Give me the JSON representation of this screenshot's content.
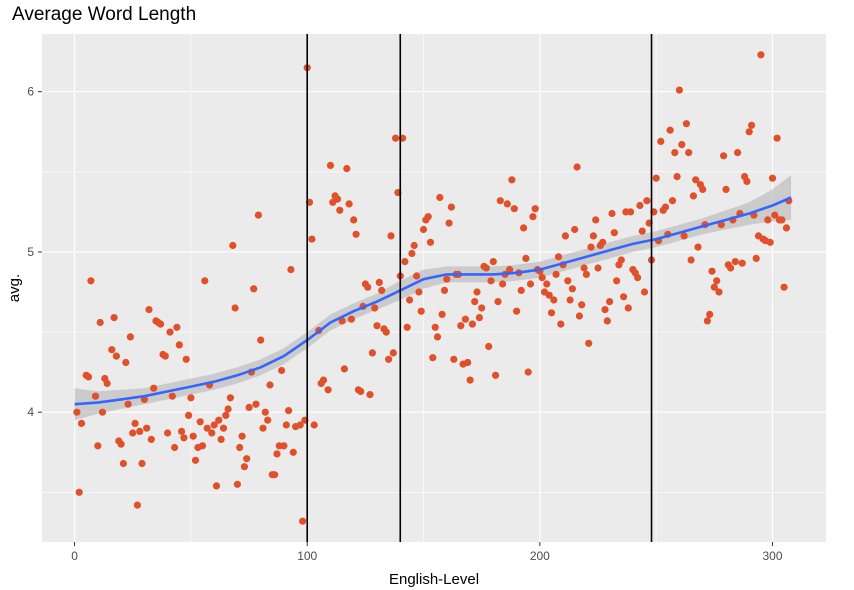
{
  "chart_data": {
    "type": "scatter",
    "title": "Average Word Length",
    "xlabel": "English-Level",
    "ylabel": "avg.",
    "xlim": [
      -14,
      323
    ],
    "ylim": [
      3.19,
      6.36
    ],
    "x_ticks": [
      0,
      100,
      200,
      300
    ],
    "x_tick_labels": [
      "0",
      "100",
      "200",
      "300"
    ],
    "y_ticks": [
      4,
      5,
      6
    ],
    "y_tick_labels": [
      "4",
      "5",
      "6"
    ],
    "grid": true,
    "legend": "none",
    "vlines": [
      100,
      140,
      248
    ],
    "point_color": "#e0502a",
    "smooth_color": "#3366ff",
    "ribbon_color": "#bebebe",
    "panel_color": "#ebebeb",
    "smooth": {
      "x": [
        0,
        10,
        20,
        30,
        40,
        50,
        60,
        70,
        80,
        90,
        100,
        110,
        120,
        130,
        140,
        150,
        160,
        170,
        180,
        190,
        200,
        210,
        220,
        230,
        240,
        250,
        260,
        270,
        280,
        290,
        300,
        308
      ],
      "y": [
        4.05,
        4.06,
        4.08,
        4.1,
        4.13,
        4.16,
        4.19,
        4.23,
        4.28,
        4.35,
        4.45,
        4.56,
        4.63,
        4.69,
        4.76,
        4.83,
        4.86,
        4.86,
        4.86,
        4.87,
        4.89,
        4.93,
        4.97,
        5.01,
        5.05,
        5.08,
        5.12,
        5.16,
        5.2,
        5.24,
        5.29,
        5.34
      ],
      "se": [
        0.1,
        0.07,
        0.06,
        0.05,
        0.05,
        0.05,
        0.05,
        0.05,
        0.05,
        0.05,
        0.05,
        0.05,
        0.05,
        0.05,
        0.06,
        0.06,
        0.05,
        0.05,
        0.05,
        0.05,
        0.05,
        0.05,
        0.05,
        0.05,
        0.05,
        0.05,
        0.05,
        0.05,
        0.06,
        0.07,
        0.1,
        0.14
      ]
    },
    "points": [
      [
        1,
        4.0
      ],
      [
        2,
        3.5
      ],
      [
        3,
        3.93
      ],
      [
        5,
        4.23
      ],
      [
        6,
        4.22
      ],
      [
        7,
        4.82
      ],
      [
        9,
        4.1
      ],
      [
        10,
        3.79
      ],
      [
        11,
        4.56
      ],
      [
        12,
        4.0
      ],
      [
        13,
        4.21
      ],
      [
        14,
        4.18
      ],
      [
        16,
        4.39
      ],
      [
        17,
        4.59
      ],
      [
        18,
        4.35
      ],
      [
        19,
        3.82
      ],
      [
        20,
        3.8
      ],
      [
        21,
        3.68
      ],
      [
        22,
        4.31
      ],
      [
        23,
        4.05
      ],
      [
        24,
        4.47
      ],
      [
        25,
        3.87
      ],
      [
        26,
        3.93
      ],
      [
        27,
        3.42
      ],
      [
        28,
        3.88
      ],
      [
        29,
        3.68
      ],
      [
        30,
        4.08
      ],
      [
        31,
        3.9
      ],
      [
        32,
        4.64
      ],
      [
        33,
        3.83
      ],
      [
        34,
        4.15
      ],
      [
        35,
        4.57
      ],
      [
        36,
        4.56
      ],
      [
        37,
        4.55
      ],
      [
        38,
        4.36
      ],
      [
        39,
        4.35
      ],
      [
        40,
        3.87
      ],
      [
        41,
        4.5
      ],
      [
        42,
        4.1
      ],
      [
        43,
        3.78
      ],
      [
        44,
        4.53
      ],
      [
        45,
        4.42
      ],
      [
        46,
        3.88
      ],
      [
        47,
        3.84
      ],
      [
        48,
        4.33
      ],
      [
        49,
        3.98
      ],
      [
        50,
        4.09
      ],
      [
        51,
        3.85
      ],
      [
        52,
        3.7
      ],
      [
        53,
        3.78
      ],
      [
        54,
        3.94
      ],
      [
        55,
        3.79
      ],
      [
        56,
        4.82
      ],
      [
        57,
        3.9
      ],
      [
        58,
        4.17
      ],
      [
        59,
        3.87
      ],
      [
        60,
        3.92
      ],
      [
        61,
        3.54
      ],
      [
        62,
        3.95
      ],
      [
        63,
        3.83
      ],
      [
        64,
        3.9
      ],
      [
        65,
        3.98
      ],
      [
        66,
        4.02
      ],
      [
        67,
        4.09
      ],
      [
        68,
        5.04
      ],
      [
        69,
        4.65
      ],
      [
        70,
        3.55
      ],
      [
        71,
        3.78
      ],
      [
        72,
        3.85
      ],
      [
        73,
        3.66
      ],
      [
        74,
        3.71
      ],
      [
        75,
        4.03
      ],
      [
        76,
        4.25
      ],
      [
        77,
        4.77
      ],
      [
        78,
        4.05
      ],
      [
        79,
        5.23
      ],
      [
        80,
        4.45
      ],
      [
        81,
        3.9
      ],
      [
        82,
        4.0
      ],
      [
        83,
        3.95
      ],
      [
        84,
        4.17
      ],
      [
        85,
        3.61
      ],
      [
        86,
        3.61
      ],
      [
        87,
        3.74
      ],
      [
        88,
        3.79
      ],
      [
        89,
        4.26
      ],
      [
        90,
        3.79
      ],
      [
        91,
        3.92
      ],
      [
        92,
        4.01
      ],
      [
        93,
        4.89
      ],
      [
        94,
        3.75
      ],
      [
        95,
        3.91
      ],
      [
        97,
        3.92
      ],
      [
        98,
        3.32
      ],
      [
        99,
        3.95
      ],
      [
        100,
        6.15
      ],
      [
        101,
        5.31
      ],
      [
        102,
        5.08
      ],
      [
        103,
        3.92
      ],
      [
        105,
        4.51
      ],
      [
        106,
        4.18
      ],
      [
        107,
        4.2
      ],
      [
        109,
        4.14
      ],
      [
        110,
        5.54
      ],
      [
        111,
        5.31
      ],
      [
        112,
        5.35
      ],
      [
        113,
        5.33
      ],
      [
        114,
        5.26
      ],
      [
        115,
        4.57
      ],
      [
        116,
        4.27
      ],
      [
        117,
        5.52
      ],
      [
        118,
        5.3
      ],
      [
        119,
        4.58
      ],
      [
        120,
        5.2
      ],
      [
        121,
        5.11
      ],
      [
        122,
        4.14
      ],
      [
        123,
        4.13
      ],
      [
        124,
        4.66
      ],
      [
        125,
        4.8
      ],
      [
        126,
        4.78
      ],
      [
        127,
        4.11
      ],
      [
        128,
        4.37
      ],
      [
        129,
        4.65
      ],
      [
        130,
        4.54
      ],
      [
        131,
        4.81
      ],
      [
        132,
        4.76
      ],
      [
        133,
        4.52
      ],
      [
        134,
        4.5
      ],
      [
        135,
        4.33
      ],
      [
        136,
        5.1
      ],
      [
        137,
        4.37
      ],
      [
        138,
        5.71
      ],
      [
        139,
        5.37
      ],
      [
        140,
        4.85
      ],
      [
        141,
        5.71
      ],
      [
        142,
        4.94
      ],
      [
        143,
        4.53
      ],
      [
        144,
        4.7
      ],
      [
        145,
        4.99
      ],
      [
        146,
        5.04
      ],
      [
        147,
        4.85
      ],
      [
        148,
        4.75
      ],
      [
        149,
        4.63
      ],
      [
        150,
        5.14
      ],
      [
        151,
        5.2
      ],
      [
        152,
        5.22
      ],
      [
        153,
        5.06
      ],
      [
        154,
        4.34
      ],
      [
        155,
        4.53
      ],
      [
        156,
        4.47
      ],
      [
        157,
        5.34
      ],
      [
        158,
        4.61
      ],
      [
        159,
        4.76
      ],
      [
        160,
        4.83
      ],
      [
        161,
        5.18
      ],
      [
        162,
        5.28
      ],
      [
        163,
        4.33
      ],
      [
        164,
        4.86
      ],
      [
        165,
        4.86
      ],
      [
        166,
        4.54
      ],
      [
        167,
        4.3
      ],
      [
        168,
        4.58
      ],
      [
        169,
        4.31
      ],
      [
        170,
        4.2
      ],
      [
        171,
        4.55
      ],
      [
        172,
        4.69
      ],
      [
        173,
        4.75
      ],
      [
        174,
        4.59
      ],
      [
        175,
        4.65
      ],
      [
        176,
        4.91
      ],
      [
        177,
        4.9
      ],
      [
        178,
        4.41
      ],
      [
        179,
        4.82
      ],
      [
        180,
        4.94
      ],
      [
        181,
        4.23
      ],
      [
        182,
        4.69
      ],
      [
        183,
        5.32
      ],
      [
        184,
        4.8
      ],
      [
        185,
        4.86
      ],
      [
        186,
        5.3
      ],
      [
        187,
        4.89
      ],
      [
        188,
        5.45
      ],
      [
        189,
        5.27
      ],
      [
        190,
        4.63
      ],
      [
        191,
        4.87
      ],
      [
        192,
        4.76
      ],
      [
        193,
        5.15
      ],
      [
        194,
        4.96
      ],
      [
        195,
        4.25
      ],
      [
        196,
        4.8
      ],
      [
        197,
        5.22
      ],
      [
        198,
        5.27
      ],
      [
        199,
        4.89
      ],
      [
        200,
        4.88
      ],
      [
        201,
        4.84
      ],
      [
        202,
        4.75
      ],
      [
        203,
        4.8
      ],
      [
        204,
        4.73
      ],
      [
        205,
        4.62
      ],
      [
        206,
        4.7
      ],
      [
        207,
        4.86
      ],
      [
        208,
        4.97
      ],
      [
        209,
        4.55
      ],
      [
        210,
        4.92
      ],
      [
        211,
        5.1
      ],
      [
        212,
        4.82
      ],
      [
        213,
        4.7
      ],
      [
        214,
        4.77
      ],
      [
        215,
        5.14
      ],
      [
        216,
        5.53
      ],
      [
        217,
        4.6
      ],
      [
        218,
        4.67
      ],
      [
        219,
        4.9
      ],
      [
        220,
        4.86
      ],
      [
        221,
        4.43
      ],
      [
        222,
        5.03
      ],
      [
        223,
        5.1
      ],
      [
        224,
        5.2
      ],
      [
        225,
        4.9
      ],
      [
        226,
        5.04
      ],
      [
        227,
        5.06
      ],
      [
        228,
        4.64
      ],
      [
        229,
        4.57
      ],
      [
        230,
        4.69
      ],
      [
        231,
        5.24
      ],
      [
        232,
        5.12
      ],
      [
        233,
        4.82
      ],
      [
        234,
        4.92
      ],
      [
        235,
        4.95
      ],
      [
        236,
        4.72
      ],
      [
        237,
        5.25
      ],
      [
        238,
        4.65
      ],
      [
        239,
        5.25
      ],
      [
        240,
        4.89
      ],
      [
        241,
        4.87
      ],
      [
        242,
        4.84
      ],
      [
        243,
        5.29
      ],
      [
        244,
        5.13
      ],
      [
        245,
        4.75
      ],
      [
        246,
        5.32
      ],
      [
        247,
        5.18
      ],
      [
        248,
        4.95
      ],
      [
        249,
        5.25
      ],
      [
        250,
        5.46
      ],
      [
        251,
        5.07
      ],
      [
        252,
        5.69
      ],
      [
        253,
        5.26
      ],
      [
        254,
        5.28
      ],
      [
        255,
        5.11
      ],
      [
        256,
        5.76
      ],
      [
        257,
        5.32
      ],
      [
        258,
        5.62
      ],
      [
        259,
        5.47
      ],
      [
        260,
        6.01
      ],
      [
        261,
        5.67
      ],
      [
        262,
        5.1
      ],
      [
        263,
        5.8
      ],
      [
        264,
        5.62
      ],
      [
        265,
        4.95
      ],
      [
        266,
        5.35
      ],
      [
        267,
        5.45
      ],
      [
        268,
        5.03
      ],
      [
        269,
        5.42
      ],
      [
        270,
        5.39
      ],
      [
        271,
        5.17
      ],
      [
        272,
        4.57
      ],
      [
        273,
        4.61
      ],
      [
        274,
        4.88
      ],
      [
        275,
        4.78
      ],
      [
        276,
        4.82
      ],
      [
        277,
        4.75
      ],
      [
        278,
        5.17
      ],
      [
        279,
        5.6
      ],
      [
        280,
        5.39
      ],
      [
        281,
        4.92
      ],
      [
        282,
        4.9
      ],
      [
        283,
        5.2
      ],
      [
        284,
        4.94
      ],
      [
        285,
        5.62
      ],
      [
        286,
        5.24
      ],
      [
        287,
        4.93
      ],
      [
        288,
        5.47
      ],
      [
        289,
        5.44
      ],
      [
        290,
        5.75
      ],
      [
        291,
        5.79
      ],
      [
        292,
        5.23
      ],
      [
        293,
        4.96
      ],
      [
        294,
        5.1
      ],
      [
        295,
        6.23
      ],
      [
        296,
        5.08
      ],
      [
        297,
        5.07
      ],
      [
        298,
        5.2
      ],
      [
        299,
        5.06
      ],
      [
        300,
        5.46
      ],
      [
        301,
        5.23
      ],
      [
        302,
        5.71
      ],
      [
        303,
        5.2
      ],
      [
        304,
        5.2
      ],
      [
        305,
        4.78
      ],
      [
        306,
        5.15
      ],
      [
        307,
        5.32
      ]
    ]
  }
}
